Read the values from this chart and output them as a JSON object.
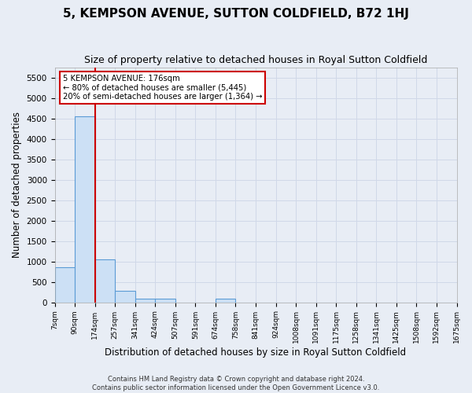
{
  "title": "5, KEMPSON AVENUE, SUTTON COLDFIELD, B72 1HJ",
  "subtitle": "Size of property relative to detached houses in Royal Sutton Coldfield",
  "xlabel": "Distribution of detached houses by size in Royal Sutton Coldfield",
  "ylabel": "Number of detached properties",
  "footer_line1": "Contains HM Land Registry data © Crown copyright and database right 2024.",
  "footer_line2": "Contains public sector information licensed under the Open Government Licence v3.0.",
  "bin_labels": [
    "7sqm",
    "90sqm",
    "174sqm",
    "257sqm",
    "341sqm",
    "424sqm",
    "507sqm",
    "591sqm",
    "674sqm",
    "758sqm",
    "841sqm",
    "924sqm",
    "1008sqm",
    "1091sqm",
    "1175sqm",
    "1258sqm",
    "1341sqm",
    "1425sqm",
    "1508sqm",
    "1592sqm",
    "1675sqm"
  ],
  "bar_heights": [
    850,
    4550,
    1050,
    280,
    85,
    85,
    0,
    0,
    85,
    0,
    0,
    0,
    0,
    0,
    0,
    0,
    0,
    0,
    0,
    0
  ],
  "bar_color": "#cce0f5",
  "bar_edge_color": "#5b9bd5",
  "property_line_color": "#cc0000",
  "annotation_title": "5 KEMPSON AVENUE: 176sqm",
  "annotation_line1": "← 80% of detached houses are smaller (5,445)",
  "annotation_line2": "20% of semi-detached houses are larger (1,364) →",
  "annotation_box_color": "#ffffff",
  "annotation_box_edge_color": "#cc0000",
  "ylim_max": 5750,
  "yticks": [
    0,
    500,
    1000,
    1500,
    2000,
    2500,
    3000,
    3500,
    4000,
    4500,
    5000,
    5500
  ],
  "grid_color": "#d0d8e8",
  "bg_color": "#e8edf5",
  "title_fontsize": 11,
  "subtitle_fontsize": 9,
  "ylabel_fontsize": 8.5,
  "xlabel_fontsize": 8.5
}
